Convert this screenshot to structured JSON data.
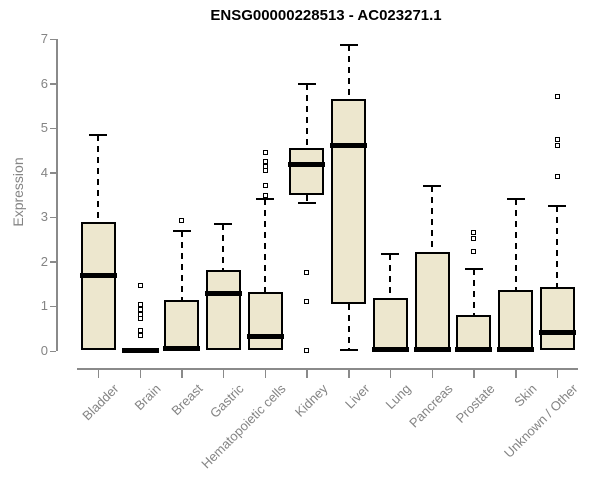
{
  "chart_data": {
    "type": "boxplot",
    "title": "ENSG00000228513 - AC023271.1",
    "ylabel": "Expression",
    "xlabel": "",
    "ylim": [
      0,
      7
    ],
    "yticks": [
      0,
      1,
      2,
      3,
      4,
      5,
      6,
      7
    ],
    "grid": false,
    "legend": null,
    "categories": [
      "Bladder",
      "Brain",
      "Breast",
      "Gastric",
      "Hematopoietic cells",
      "Kidney",
      "Liver",
      "Lung",
      "Pancreas",
      "Prostate",
      "Skin",
      "Unknown / Other"
    ],
    "series": [
      {
        "category": "Bladder",
        "low": 0.02,
        "q1": 0.02,
        "median": 1.7,
        "q3": 2.9,
        "high": 4.85,
        "outliers": []
      },
      {
        "category": "Brain",
        "low": 0.0,
        "q1": 0.0,
        "median": 0.02,
        "q3": 0.06,
        "high": 0.06,
        "outliers": [
          0.35,
          0.46,
          0.72,
          0.82,
          0.93,
          1.05,
          1.46
        ]
      },
      {
        "category": "Breast",
        "low": 0.02,
        "q1": 0.02,
        "median": 0.05,
        "q3": 1.15,
        "high": 2.7,
        "outliers": [
          2.92
        ]
      },
      {
        "category": "Gastric",
        "low": 0.02,
        "q1": 0.02,
        "median": 1.3,
        "q3": 1.82,
        "high": 2.85,
        "outliers": []
      },
      {
        "category": "Hematopoietic cells",
        "low": 0.02,
        "q1": 0.02,
        "median": 0.33,
        "q3": 1.32,
        "high": 3.42,
        "outliers": [
          3.5,
          3.72,
          4.05,
          4.15,
          4.25,
          4.45
        ]
      },
      {
        "category": "Kidney",
        "low": 3.32,
        "q1": 3.5,
        "median": 4.18,
        "q3": 4.55,
        "high": 5.98,
        "outliers": [
          1.76,
          1.12,
          0.02
        ]
      },
      {
        "category": "Liver",
        "low": 0.02,
        "q1": 1.06,
        "median": 4.6,
        "q3": 5.66,
        "high": 6.86,
        "outliers": []
      },
      {
        "category": "Lung",
        "low": 0.02,
        "q1": 0.02,
        "median": 0.04,
        "q3": 1.2,
        "high": 2.17,
        "outliers": []
      },
      {
        "category": "Pancreas",
        "low": 0.02,
        "q1": 0.02,
        "median": 0.04,
        "q3": 2.22,
        "high": 3.7,
        "outliers": []
      },
      {
        "category": "Prostate",
        "low": 0.02,
        "q1": 0.02,
        "median": 0.04,
        "q3": 0.8,
        "high": 1.84,
        "outliers": [
          2.24,
          2.53,
          2.65
        ]
      },
      {
        "category": "Skin",
        "low": 0.02,
        "q1": 0.02,
        "median": 0.04,
        "q3": 1.36,
        "high": 3.4,
        "outliers": []
      },
      {
        "category": "Unknown / Other",
        "low": 0.02,
        "q1": 0.02,
        "median": 0.42,
        "q3": 1.44,
        "high": 3.26,
        "outliers": [
          3.92,
          4.6,
          4.75,
          5.7
        ]
      }
    ],
    "colors": {
      "box_fill": "#EDE7CE",
      "box_border": "#000000",
      "median": "#000000",
      "whisker": "#000000",
      "axis": "#8A8A8A",
      "tick_label": "#848484",
      "title": "#000000",
      "background": "#FFFFFF"
    }
  }
}
